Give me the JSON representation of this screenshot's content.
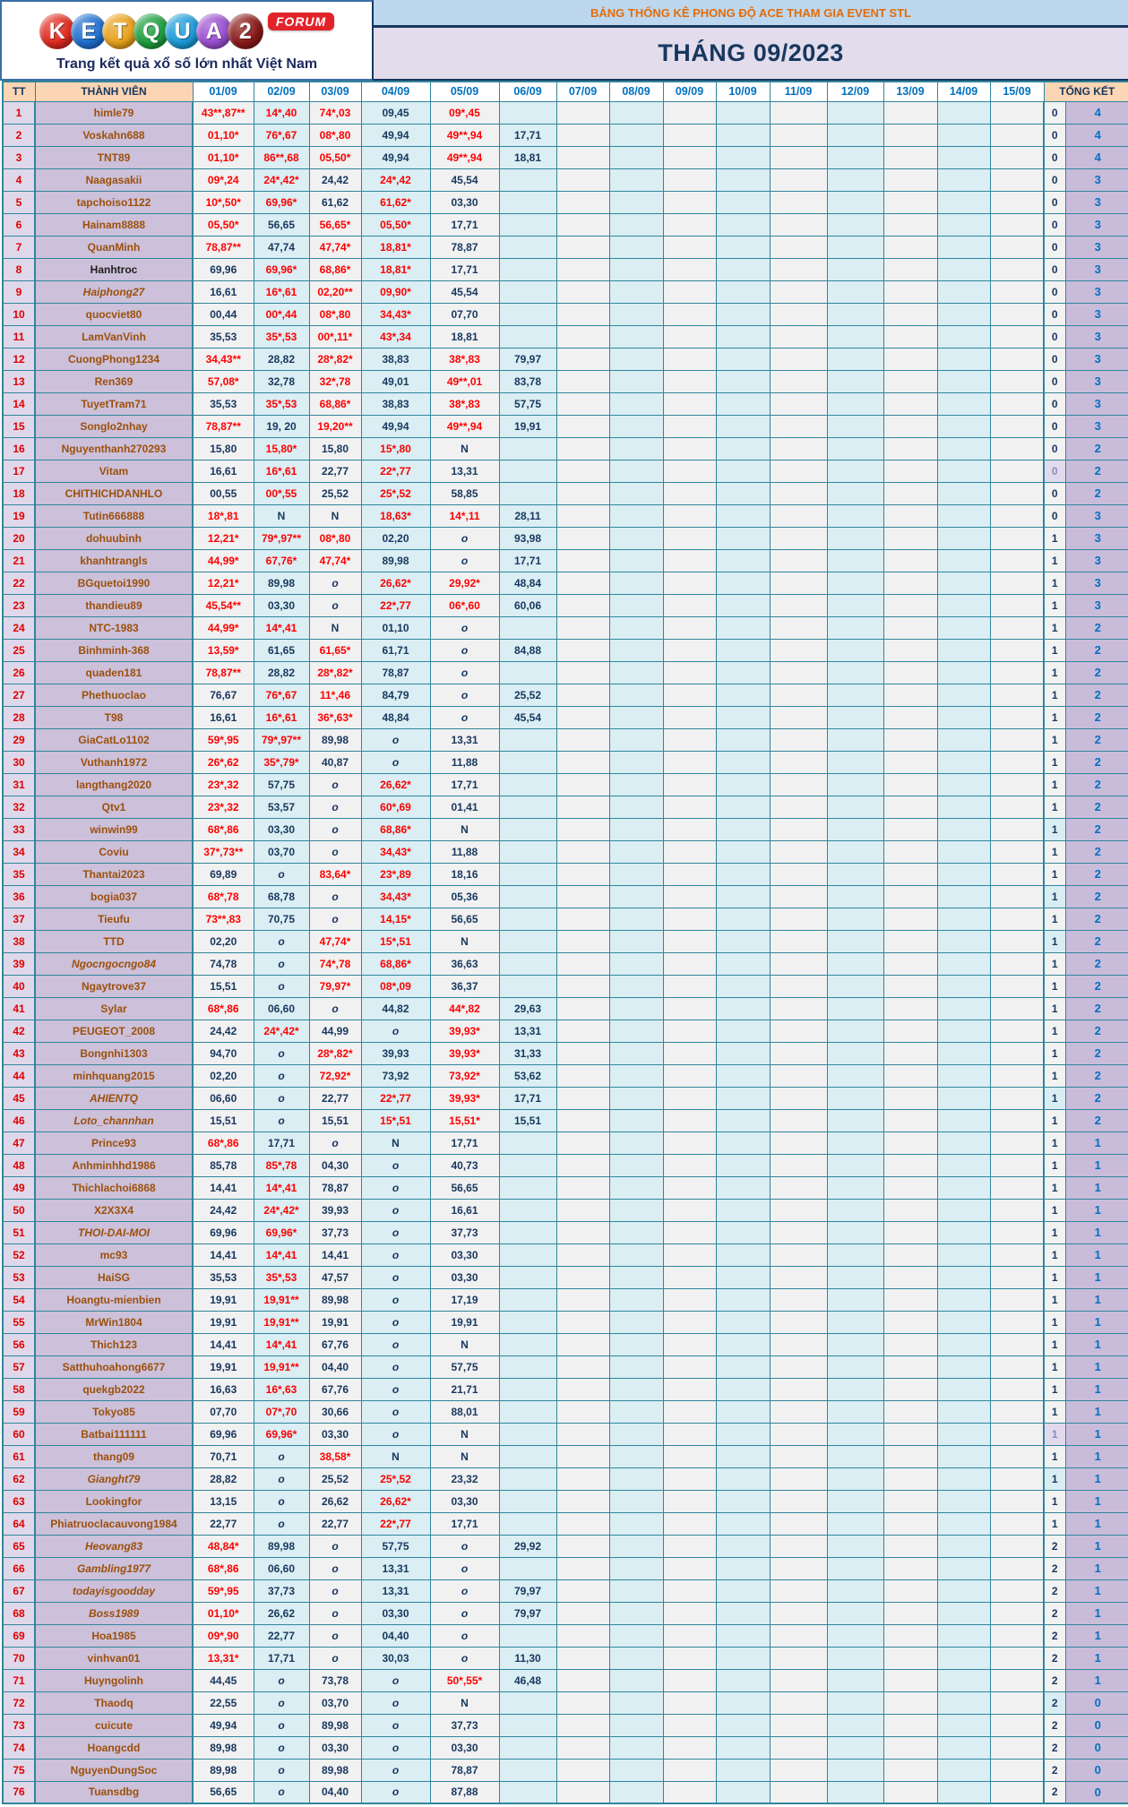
{
  "logo": {
    "letters": [
      {
        "ch": "K",
        "color": "#e02a1f"
      },
      {
        "ch": "E",
        "color": "#1f6fd0"
      },
      {
        "ch": "T",
        "color": "#e8a11b"
      },
      {
        "ch": "Q",
        "color": "#1e9e3e"
      },
      {
        "ch": "U",
        "color": "#1b9bd8"
      },
      {
        "ch": "A",
        "color": "#9b4fd0"
      },
      {
        "ch": "2",
        "color": "#8b1a1a"
      }
    ],
    "forum_badge": "FORUM",
    "tagline": "Trang kết quả xổ số lớn nhất Việt Nam"
  },
  "title_bar": "BẢNG THỐNG KÊ PHONG ĐỘ ACE THAM GIA EVENT STL",
  "month_title": "THÁNG 09/2023",
  "columns": {
    "tt": "TT",
    "member": "THÀNH VIÊN",
    "dates": [
      "01/09",
      "02/09",
      "03/09",
      "04/09",
      "05/09",
      "06/09",
      "07/09",
      "08/09",
      "09/09",
      "10/09",
      "11/09",
      "12/09",
      "13/09",
      "14/09",
      "15/09"
    ],
    "summary": "TỔNG KẾT"
  },
  "rows": [
    {
      "tt": 1,
      "name": "himle79",
      "days": [
        "43**,87**",
        "14*,40",
        "74*,03",
        "09,45",
        "09*,45",
        ""
      ],
      "s1": "0",
      "s2": "4"
    },
    {
      "tt": 2,
      "name": "Voskahn688",
      "days": [
        "01,10*",
        "76*,67",
        "08*,80",
        "49,94",
        "49**,94",
        "17,71"
      ],
      "s1": "0",
      "s2": "4"
    },
    {
      "tt": 3,
      "name": "TNT89",
      "days": [
        "01,10*",
        "86**,68",
        "05,50*",
        "49,94",
        "49**,94",
        "18,81"
      ],
      "s1": "0",
      "s2": "4"
    },
    {
      "tt": 4,
      "name": "Naagasakii",
      "days": [
        "09*,24",
        "24*,42*",
        "24,42",
        "24*,42",
        "45,54",
        ""
      ],
      "s1": "0",
      "s2": "3"
    },
    {
      "tt": 5,
      "name": "tapchoiso1122",
      "days": [
        "10*,50*",
        "69,96*",
        "61,62",
        "61,62*",
        "03,30",
        ""
      ],
      "s1": "0",
      "s2": "3"
    },
    {
      "tt": 6,
      "name": "Hainam8888",
      "days": [
        "05,50*",
        "56,65",
        "56,65*",
        "05,50*",
        "17,71",
        ""
      ],
      "s1": "0",
      "s2": "3"
    },
    {
      "tt": 7,
      "name": "QuanMinh",
      "days": [
        "78,87**",
        "47,74",
        "47,74*",
        "18,81*",
        "78,87",
        ""
      ],
      "s1": "0",
      "s2": "3"
    },
    {
      "tt": 8,
      "name": "Hanhtroc",
      "style": "dark",
      "days": [
        "69,96",
        "69,96*",
        "68,86*",
        "18,81*",
        "17,71",
        ""
      ],
      "s1": "0",
      "s2": "3"
    },
    {
      "tt": 9,
      "name": "Haiphong27",
      "style": "italic",
      "days": [
        "16,61",
        "16*,61",
        "02,20**",
        "09,90*",
        "45,54",
        ""
      ],
      "s1": "0",
      "s2": "3"
    },
    {
      "tt": 10,
      "name": "quocviet80",
      "days": [
        "00,44",
        "00*,44",
        "08*,80",
        "34,43*",
        "07,70",
        ""
      ],
      "s1": "0",
      "s2": "3"
    },
    {
      "tt": 11,
      "name": "LamVanVinh",
      "days": [
        "35,53",
        "35*,53",
        "00*,11*",
        "43*,34",
        "18,81",
        ""
      ],
      "s1": "0",
      "s2": "3"
    },
    {
      "tt": 12,
      "name": "CuongPhong1234",
      "days": [
        "34,43**",
        "28,82",
        "28*,82*",
        "38,83",
        "38*,83",
        "79,97"
      ],
      "s1": "0",
      "s2": "3"
    },
    {
      "tt": 13,
      "name": "Ren369",
      "days": [
        "57,08*",
        "32,78",
        "32*,78",
        "49,01",
        "49**,01",
        "83,78"
      ],
      "s1": "0",
      "s2": "3"
    },
    {
      "tt": 14,
      "name": "TuyetTram71",
      "days": [
        "35,53",
        "35*,53",
        "68,86*",
        "38,83",
        "38*,83",
        "57,75"
      ],
      "s1": "0",
      "s2": "3"
    },
    {
      "tt": 15,
      "name": "Songlo2nhay",
      "days": [
        "78,87**",
        "19, 20",
        "19,20**",
        "49,94",
        "49**,94",
        "19,91"
      ],
      "s1": "0",
      "s2": "3"
    },
    {
      "tt": 16,
      "name": "Nguyenthanh270293",
      "days": [
        "15,80",
        "15,80*",
        "15,80",
        "15*,80",
        "N",
        ""
      ],
      "s1": "0",
      "s2": "2"
    },
    {
      "tt": 17,
      "name": "Vitam",
      "days": [
        "16,61",
        "16*,61",
        "22,77",
        "22*,77",
        "13,31",
        ""
      ],
      "s1": "0",
      "s1bg": "lav",
      "s2": "2"
    },
    {
      "tt": 18,
      "name": "CHITHICHDANHLO",
      "days": [
        "00,55",
        "00*,55",
        "25,52",
        "25*,52",
        "58,85",
        ""
      ],
      "s1": "0",
      "s2": "2"
    },
    {
      "tt": 19,
      "name": "Tutin666888",
      "days": [
        "18*,81",
        "N",
        "N",
        "18,63*",
        "14*,11",
        "28,11"
      ],
      "s1": "0",
      "s2": "3"
    },
    {
      "tt": 20,
      "name": "dohuubinh",
      "days": [
        "12,21*",
        "79*,97**",
        "08*,80",
        "02,20",
        "o",
        "93,98"
      ],
      "s1": "1",
      "s2": "3"
    },
    {
      "tt": 21,
      "name": "khanhtrangls",
      "days": [
        "44,99*",
        "67,76*",
        "47,74*",
        "89,98",
        "o",
        "17,71"
      ],
      "s1": "1",
      "s2": "3"
    },
    {
      "tt": 22,
      "name": "BGquetoi1990",
      "days": [
        "12,21*",
        "89,98",
        "o",
        "26,62*",
        "29,92*",
        "48,84"
      ],
      "s1": "1",
      "s2": "3"
    },
    {
      "tt": 23,
      "name": "thandieu89",
      "days": [
        "45,54**",
        "03,30",
        "o",
        "22*,77",
        "06*,60",
        "60,06"
      ],
      "s1": "1",
      "s2": "3"
    },
    {
      "tt": 24,
      "name": "NTC-1983",
      "days": [
        "44,99*",
        "14*,41",
        "N",
        "01,10",
        "o",
        ""
      ],
      "s1": "1",
      "s2": "2"
    },
    {
      "tt": 25,
      "name": "Binhminh-368",
      "days": [
        "13,59*",
        "61,65",
        "61,65*",
        "61,71",
        "o",
        "84,88"
      ],
      "s1": "1",
      "s2": "2"
    },
    {
      "tt": 26,
      "name": "quaden181",
      "days": [
        "78,87**",
        "28,82",
        "28*,82*",
        "78,87",
        "o",
        ""
      ],
      "s1": "1",
      "s2": "2"
    },
    {
      "tt": 27,
      "name": "Phethuoclao",
      "days": [
        "76,67",
        "76*,67",
        "11*,46",
        "84,79",
        "o",
        "25,52"
      ],
      "s1": "1",
      "s2": "2"
    },
    {
      "tt": 28,
      "name": "T98",
      "days": [
        "16,61",
        "16*,61",
        "36*,63*",
        "48,84",
        "o",
        "45,54"
      ],
      "s1": "1",
      "s2": "2"
    },
    {
      "tt": 29,
      "name": "GiaCatLo1102",
      "days": [
        "59*,95",
        "79*,97**",
        "89,98",
        "o",
        "13,31",
        ""
      ],
      "s1": "1",
      "s2": "2"
    },
    {
      "tt": 30,
      "name": "Vuthanh1972",
      "days": [
        "26*,62",
        "35*,79*",
        "40,87",
        "o",
        "11,88",
        ""
      ],
      "s1": "1",
      "s2": "2"
    },
    {
      "tt": 31,
      "name": "langthang2020",
      "days": [
        "23*,32",
        "57,75",
        "o",
        "26,62*",
        "17,71",
        ""
      ],
      "s1": "1",
      "s2": "2"
    },
    {
      "tt": 32,
      "name": "Qtv1",
      "days": [
        "23*,32",
        "53,57",
        "o",
        "60*,69",
        "01,41",
        ""
      ],
      "s1": "1",
      "s2": "2"
    },
    {
      "tt": 33,
      "name": "winwin99",
      "days": [
        "68*,86",
        "03,30",
        "o",
        "68,86*",
        "N",
        ""
      ],
      "s1": "1",
      "s1bg": "blue",
      "s2": "2"
    },
    {
      "tt": 34,
      "name": "Coviu",
      "days": [
        "37*,73**",
        "03,70",
        "o",
        "34,43*",
        "11,88",
        ""
      ],
      "s1": "1",
      "s2": "2"
    },
    {
      "tt": 35,
      "name": "Thantai2023",
      "days": [
        "69,89",
        "o",
        "83,64*",
        "23*,89",
        "18,16",
        ""
      ],
      "s1": "1",
      "s2": "2"
    },
    {
      "tt": 36,
      "name": "bogia037",
      "days": [
        "68*,78",
        "68,78",
        "o",
        "34,43*",
        "05,36",
        ""
      ],
      "s1": "1",
      "s1bg": "blue",
      "s2": "2"
    },
    {
      "tt": 37,
      "name": "Tieufu",
      "days": [
        "73**,83",
        "70,75",
        "o",
        "14,15*",
        "56,65",
        ""
      ],
      "s1": "1",
      "s2": "2"
    },
    {
      "tt": 38,
      "name": "TTD",
      "days": [
        "02,20",
        "o",
        "47,74*",
        "15*,51",
        "N",
        ""
      ],
      "s1": "1",
      "s1bg": "blue",
      "s2": "2"
    },
    {
      "tt": 39,
      "name": "Ngocngocngo84",
      "style": "italic",
      "days": [
        "74,78",
        "o",
        "74*,78",
        "68,86*",
        "36,63",
        ""
      ],
      "s1": "1",
      "s2": "2"
    },
    {
      "tt": 40,
      "name": "Ngaytrove37",
      "days": [
        "15,51",
        "o",
        "79,97*",
        "08*,09",
        "36,37",
        ""
      ],
      "s1": "1",
      "s2": "2"
    },
    {
      "tt": 41,
      "name": "Sylar",
      "days": [
        "68*,86",
        "06,60",
        "o",
        "44,82",
        "44*,82",
        "29,63"
      ],
      "s1": "1",
      "s2": "2"
    },
    {
      "tt": 42,
      "name": "PEUGEOT_2008",
      "days": [
        "24,42",
        "24*,42*",
        "44,99",
        "o",
        "39,93*",
        "13,31"
      ],
      "s1": "1",
      "s2": "2"
    },
    {
      "tt": 43,
      "name": "Bongnhi1303",
      "days": [
        "94,70",
        "o",
        "28*,82*",
        "39,93",
        "39,93*",
        "31,33"
      ],
      "s1": "1",
      "s2": "2"
    },
    {
      "tt": 44,
      "name": "minhquang2015",
      "days": [
        "02,20",
        "o",
        "72,92*",
        "73,92",
        "73,92*",
        "53,62"
      ],
      "s1": "1",
      "s2": "2"
    },
    {
      "tt": 45,
      "name": "AHIENTQ",
      "style": "italic",
      "days": [
        "06,60",
        "o",
        "22,77",
        "22*,77",
        "39,93*",
        "17,71"
      ],
      "s1": "1",
      "s1bg": "blue",
      "s2": "2"
    },
    {
      "tt": 46,
      "name": "Loto_channhan",
      "style": "italic",
      "days": [
        "15,51",
        "o",
        "15,51",
        "15*,51",
        "15,51*",
        "15,51"
      ],
      "s1": "1",
      "s2": "2"
    },
    {
      "tt": 47,
      "name": "Prince93",
      "days": [
        "68*,86",
        "17,71",
        "o",
        "N",
        "17,71",
        ""
      ],
      "s1": "1",
      "s2": "1"
    },
    {
      "tt": 48,
      "name": "Anhminhhd1986",
      "days": [
        "85,78",
        "85*,78",
        "04,30",
        "o",
        "40,73",
        ""
      ],
      "s1": "1",
      "s2": "1"
    },
    {
      "tt": 49,
      "name": "Thichlachoi6868",
      "days": [
        "14,41",
        "14*,41",
        "78,87",
        "o",
        "56,65",
        ""
      ],
      "s1": "1",
      "s2": "1"
    },
    {
      "tt": 50,
      "name": "X2X3X4",
      "days": [
        "24,42",
        "24*,42*",
        "39,93",
        "o",
        "16,61",
        ""
      ],
      "s1": "1",
      "s2": "1"
    },
    {
      "tt": 51,
      "name": "THOI-DAI-MOI",
      "style": "italic",
      "days": [
        "69,96",
        "69,96*",
        "37,73",
        "o",
        "37,73",
        ""
      ],
      "s1": "1",
      "s2": "1"
    },
    {
      "tt": 52,
      "name": "mc93",
      "days": [
        "14,41",
        "14*,41",
        "14,41",
        "o",
        "03,30",
        ""
      ],
      "s1": "1",
      "s2": "1"
    },
    {
      "tt": 53,
      "name": "HaiSG",
      "days": [
        "35,53",
        "35*,53",
        "47,57",
        "o",
        "03,30",
        ""
      ],
      "s1": "1",
      "s2": "1"
    },
    {
      "tt": 54,
      "name": "Hoangtu-mienbien",
      "days": [
        "19,91",
        "19,91**",
        "89,98",
        "o",
        "17,19",
        ""
      ],
      "s1": "1",
      "s2": "1"
    },
    {
      "tt": 55,
      "name": "MrWin1804",
      "days": [
        "19,91",
        "19,91**",
        "19,91",
        "o",
        "19,91",
        ""
      ],
      "s1": "1",
      "s2": "1"
    },
    {
      "tt": 56,
      "name": "Thich123",
      "days": [
        "14,41",
        "14*,41",
        "67,76",
        "o",
        "N",
        ""
      ],
      "s1": "1",
      "s2": "1"
    },
    {
      "tt": 57,
      "name": "Satthuhoahong6677",
      "days": [
        "19,91",
        "19,91**",
        "04,40",
        "o",
        "57,75",
        ""
      ],
      "s1": "1",
      "s2": "1"
    },
    {
      "tt": 58,
      "name": "quekgb2022",
      "days": [
        "16,63",
        "16*,63",
        "67,76",
        "o",
        "21,71",
        ""
      ],
      "s1": "1",
      "s2": "1"
    },
    {
      "tt": 59,
      "name": "Tokyo85",
      "days": [
        "07,70",
        "07*,70",
        "30,66",
        "o",
        "88,01",
        ""
      ],
      "s1": "1",
      "s2": "1"
    },
    {
      "tt": 60,
      "name": "Batbai111111",
      "days": [
        "69,96",
        "69,96*",
        "03,30",
        "o",
        "N",
        ""
      ],
      "s1": "1",
      "s1bg": "lav",
      "s2": "1"
    },
    {
      "tt": 61,
      "name": "thang09",
      "days": [
        "70,71",
        "o",
        "38,58*",
        "N",
        "N",
        ""
      ],
      "s1": "1",
      "s2": "1"
    },
    {
      "tt": 62,
      "name": "Gianght79",
      "style": "italic",
      "days": [
        "28,82",
        "o",
        "25,52",
        "25*,52",
        "23,32",
        ""
      ],
      "s1": "1",
      "s1bg": "blue",
      "s2": "1"
    },
    {
      "tt": 63,
      "name": "Lookingfor",
      "days": [
        "13,15",
        "o",
        "26,62",
        "26,62*",
        "03,30",
        ""
      ],
      "s1": "1",
      "s2": "1"
    },
    {
      "tt": 64,
      "name": "Phiatruoclacauvong1984",
      "days": [
        "22,77",
        "o",
        "22,77",
        "22*,77",
        "17,71",
        ""
      ],
      "s1": "1",
      "s2": "1"
    },
    {
      "tt": 65,
      "name": "Heovang83",
      "style": "italic",
      "days": [
        "48,84*",
        "89,98",
        "o",
        "57,75",
        "o",
        "29,92"
      ],
      "s1": "2",
      "s2": "1"
    },
    {
      "tt": 66,
      "name": "Gambling1977",
      "style": "italic",
      "days": [
        "68*,86",
        "06,60",
        "o",
        "13,31",
        "o",
        ""
      ],
      "s1": "2",
      "s2": "1"
    },
    {
      "tt": 67,
      "name": "todayisgoodday",
      "style": "italic",
      "days": [
        "59*,95",
        "37,73",
        "o",
        "13,31",
        "o",
        "79,97"
      ],
      "s1": "2",
      "s2": "1"
    },
    {
      "tt": 68,
      "name": "Boss1989",
      "style": "italic",
      "days": [
        "01,10*",
        "26,62",
        "o",
        "03,30",
        "o",
        "79,97"
      ],
      "s1": "2",
      "s2": "1"
    },
    {
      "tt": 69,
      "name": "Hoa1985",
      "days": [
        "09*,90",
        "22,77",
        "o",
        "04,40",
        "o",
        ""
      ],
      "s1": "2",
      "s2": "1"
    },
    {
      "tt": 70,
      "name": "vinhvan01",
      "days": [
        "13,31*",
        "17,71",
        "o",
        "30,03",
        "o",
        "11,30"
      ],
      "s1": "2",
      "s2": "1"
    },
    {
      "tt": 71,
      "name": "Huyngolinh",
      "days": [
        "44,45",
        "o",
        "73,78",
        "o",
        "50*,55*",
        "46,48"
      ],
      "s1": "2",
      "s2": "1"
    },
    {
      "tt": 72,
      "name": "Thaodq",
      "days": [
        "22,55",
        "o",
        "03,70",
        "o",
        "N",
        ""
      ],
      "s1": "2",
      "s1bg": "blue",
      "s2": "0"
    },
    {
      "tt": 73,
      "name": "cuicute",
      "days": [
        "49,94",
        "o",
        "89,98",
        "o",
        "37,73",
        ""
      ],
      "s1": "2",
      "s2": "0"
    },
    {
      "tt": 74,
      "name": "Hoangcdd",
      "days": [
        "89,98",
        "o",
        "03,30",
        "o",
        "03,30",
        ""
      ],
      "s1": "2",
      "s2": "0"
    },
    {
      "tt": 75,
      "name": "NguyenDungSoc",
      "days": [
        "89,98",
        "o",
        "89,98",
        "o",
        "78,87",
        ""
      ],
      "s1": "2",
      "s2": "0"
    },
    {
      "tt": 76,
      "name": "Tuansdbg",
      "days": [
        "56,65",
        "o",
        "04,40",
        "o",
        "87,88",
        ""
      ],
      "s1": "2",
      "s2": "0"
    }
  ]
}
